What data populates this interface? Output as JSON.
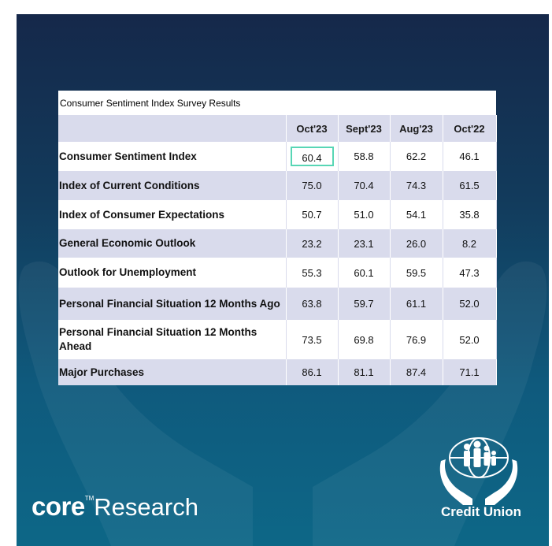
{
  "table": {
    "title": "Consumer Sentiment Index Survey Results",
    "columns": [
      "Oct'23",
      "Sept'23",
      "Aug'23",
      "Oct'22"
    ],
    "rows": [
      {
        "label": "Consumer Sentiment Index",
        "values": [
          "60.4",
          "58.8",
          "62.2",
          "46.1"
        ]
      },
      {
        "label": "Index of Current Conditions",
        "values": [
          "75.0",
          "70.4",
          "74.3",
          "61.5"
        ]
      },
      {
        "label": "Index of Consumer Expectations",
        "values": [
          "50.7",
          "51.0",
          "54.1",
          "35.8"
        ]
      },
      {
        "label": "General Economic Outlook",
        "values": [
          "23.2",
          "23.1",
          "26.0",
          "8.2"
        ]
      },
      {
        "label": "Outlook for Unemployment",
        "values": [
          "55.3",
          "60.1",
          "59.5",
          "47.3"
        ]
      },
      {
        "label": "Personal Financial Situation 12 Months Ago",
        "values": [
          "63.8",
          "59.7",
          "61.1",
          "52.0"
        ]
      },
      {
        "label": "Personal Financial Situation 12 Months Ahead",
        "values": [
          "73.5",
          "69.8",
          "76.9",
          "52.0"
        ]
      },
      {
        "label": "Major Purchases",
        "values": [
          "86.1",
          "81.1",
          "87.4",
          "71.1"
        ]
      }
    ]
  },
  "branding": {
    "core_logo_core": "core",
    "core_logo_tm": "TM",
    "core_logo_research": "Research",
    "credit_union_text": "Credit Union"
  },
  "colors": {
    "background_top": "#15284a",
    "background_bottom": "#0d6787",
    "table_shade": "#d9dbec",
    "highlight_border": "#58d6b5"
  }
}
